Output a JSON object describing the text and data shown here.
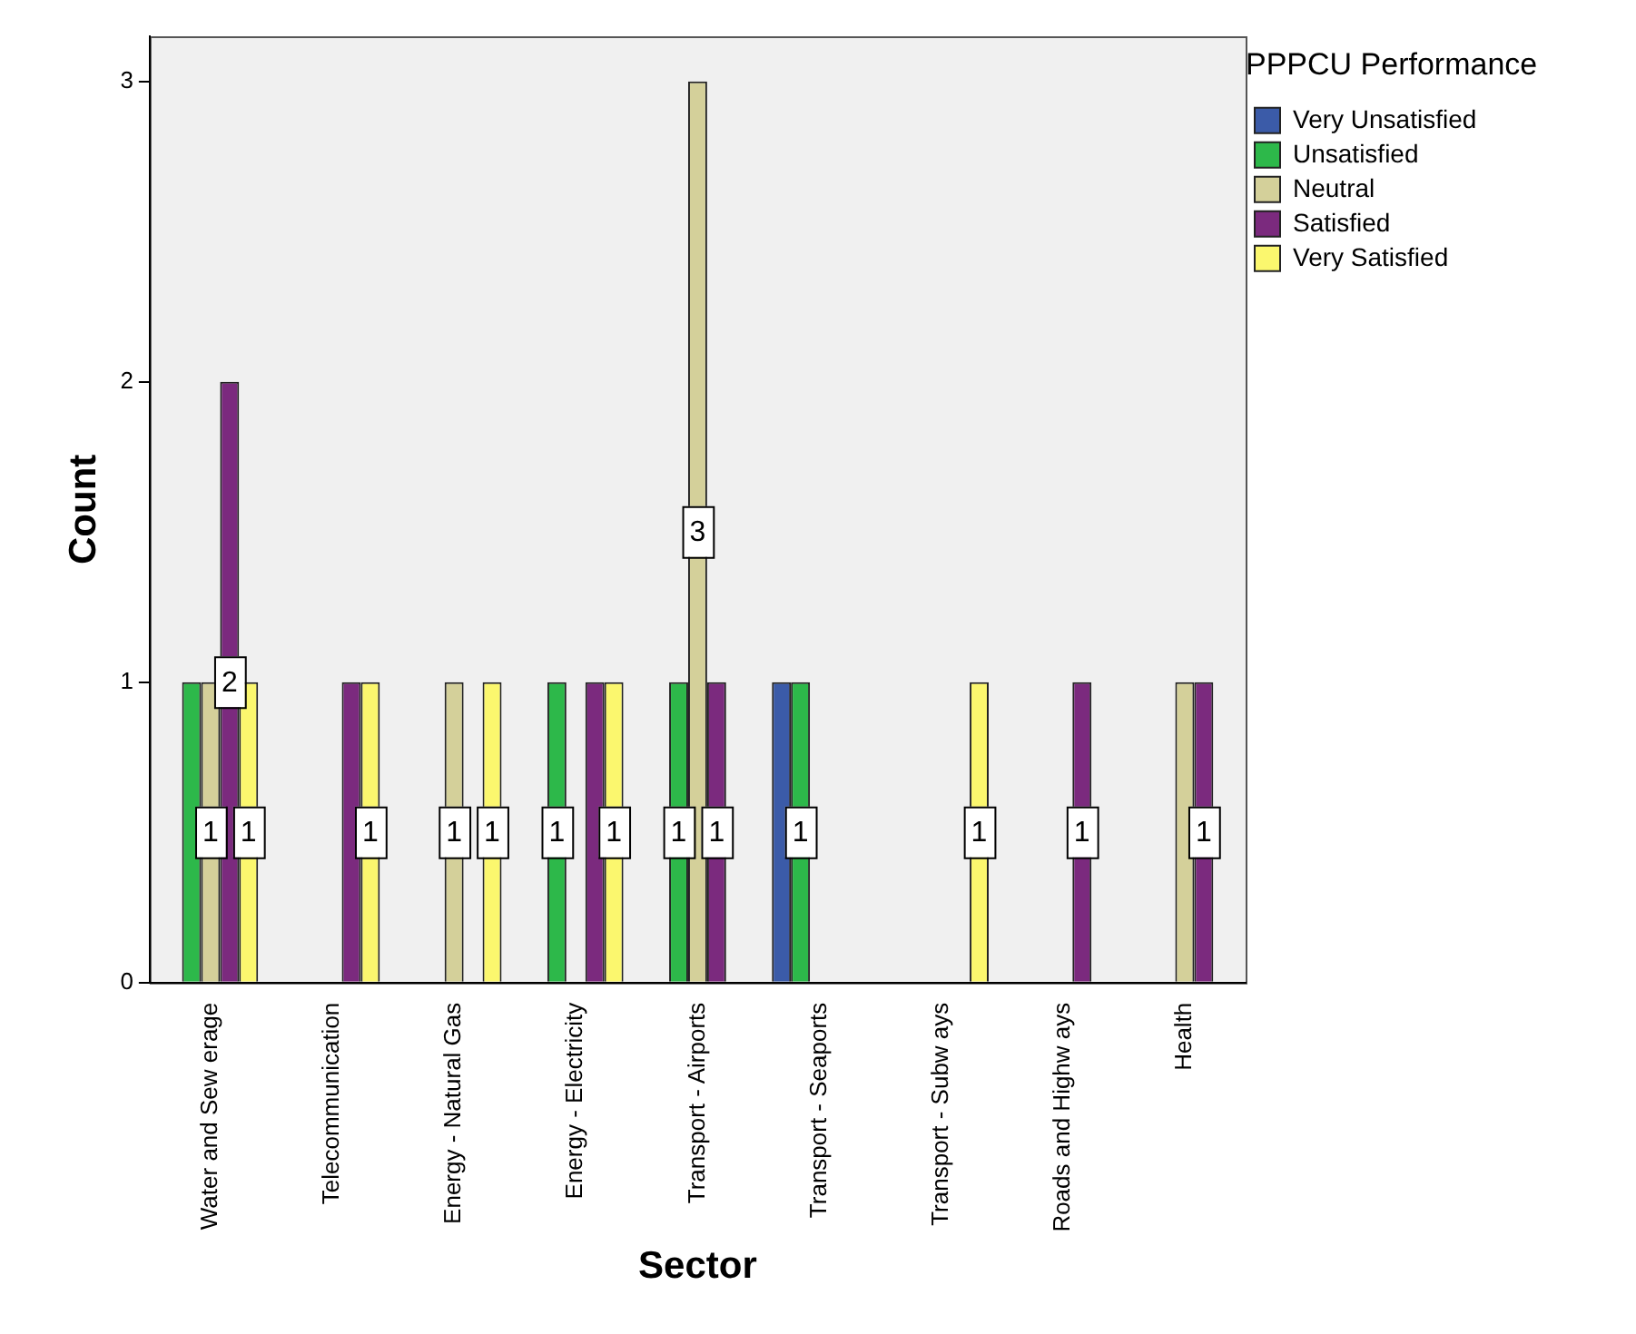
{
  "chart_data": {
    "type": "bar",
    "xlabel": "Sector",
    "ylabel": "Count",
    "legend_title": "PPPCU Performance",
    "legend": "top right",
    "grid": false,
    "categories": [
      "Water and Sew erage",
      "Telecommunication",
      "Energy - Natural Gas",
      "Energy - Electricity",
      "Transport - Airports",
      "Transport - Seaports",
      "Transport - Subw ays",
      "Roads and Highw ays",
      "Health"
    ],
    "ylim": [
      0,
      3.15
    ],
    "yticks": [
      0,
      1,
      2,
      3
    ],
    "series": [
      {
        "name": "Very Unsatisfied",
        "color": "#3b5ba8",
        "values": [
          null,
          null,
          null,
          null,
          null,
          1,
          null,
          null,
          null
        ],
        "value_labels": [
          null,
          null,
          null,
          null,
          null,
          null,
          null,
          null,
          null
        ]
      },
      {
        "name": "Unsatisfied",
        "color": "#2db84a",
        "values": [
          1,
          null,
          null,
          1,
          1,
          1,
          null,
          null,
          null
        ],
        "value_labels": [
          null,
          null,
          null,
          "1",
          "1",
          "1",
          null,
          null,
          null
        ]
      },
      {
        "name": "Neutral",
        "color": "#d4d09a",
        "values": [
          1,
          null,
          1,
          null,
          3,
          null,
          null,
          null,
          1
        ],
        "value_labels": [
          "1",
          null,
          "1",
          null,
          "3",
          null,
          null,
          null,
          null
        ]
      },
      {
        "name": "Satisfied",
        "color": "#7b2a7e",
        "values": [
          2,
          1,
          null,
          1,
          1,
          null,
          null,
          1,
          1
        ],
        "value_labels": [
          "2",
          null,
          null,
          null,
          "1",
          null,
          null,
          "1",
          "1"
        ]
      },
      {
        "name": "Very Satisfied",
        "color": "#fbf76e",
        "values": [
          1,
          1,
          1,
          1,
          null,
          null,
          1,
          null,
          null
        ],
        "value_labels": [
          "1",
          "1",
          "1",
          "1",
          null,
          null,
          "1",
          null,
          null
        ]
      }
    ]
  }
}
